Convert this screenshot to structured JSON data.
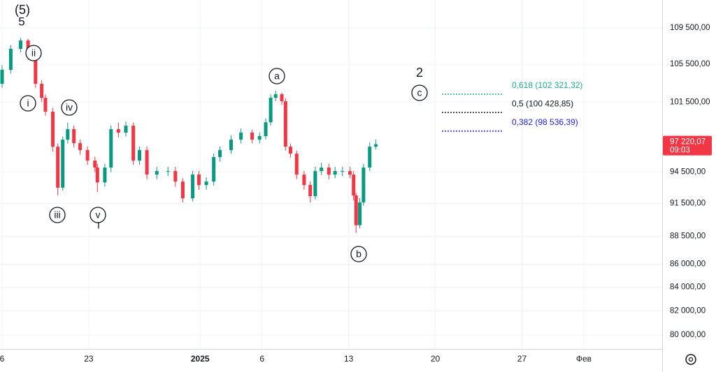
{
  "chart_data": {
    "type": "candlestick",
    "log_scale": true,
    "grid": true,
    "up_color": "#089981",
    "down_color": "#f23645",
    "xlim": [
      -0.17,
      53.33
    ],
    "ylim": [
      78860,
      112670
    ],
    "xticks": [
      {
        "value": 0,
        "label": "6"
      },
      {
        "value": 7,
        "label": "23"
      },
      {
        "value": 16,
        "label": "2025"
      },
      {
        "value": 21,
        "label": "6"
      },
      {
        "value": 28,
        "label": "13"
      },
      {
        "value": 35,
        "label": "20"
      },
      {
        "value": 42,
        "label": "27"
      },
      {
        "value": 47,
        "label": "Фев"
      }
    ],
    "yticks": [
      {
        "value": 109500,
        "label": "109 500,00"
      },
      {
        "value": 105500,
        "label": "105 500,00"
      },
      {
        "value": 101500,
        "label": "101 500,00"
      },
      {
        "value": 94500,
        "label": "94 500,00"
      },
      {
        "value": 91500,
        "label": "91 500,00"
      },
      {
        "value": 88500,
        "label": "88 500,00"
      },
      {
        "value": 86000,
        "label": "86 000,00"
      },
      {
        "value": 84000,
        "label": "84 000,00"
      },
      {
        "value": 82000,
        "label": "82 000,00"
      },
      {
        "value": 80000,
        "label": "80 000,00"
      }
    ],
    "x": [
      0,
      0.7,
      1.5,
      2.1,
      2.7,
      3.2,
      3.5,
      4.1,
      4.5,
      4.9,
      5.3,
      5.8,
      6.3,
      6.9,
      7.5,
      7.7,
      8.3,
      8.8,
      9.4,
      10.0,
      10.6,
      11.1,
      11.7,
      12.5,
      13.4,
      14.0,
      14.6,
      15.4,
      15.9,
      16.5,
      17.1,
      17.6,
      18.5,
      19.3,
      20.2,
      20.8,
      21.3,
      21.7,
      22.1,
      22.6,
      22.9,
      23.3,
      23.8,
      24.4,
      24.9,
      25.3,
      25.8,
      26.4,
      26.9,
      27.5,
      28.1,
      28.4,
      28.6,
      28.9,
      29.2,
      29.7,
      30.2
    ],
    "open": [
      103420,
      104910,
      107180,
      108100,
      106420,
      103420,
      101950,
      100510,
      96980,
      93000,
      97680,
      98730,
      97330,
      96640,
      95610,
      94930,
      93500,
      94930,
      98730,
      98380,
      99080,
      95610,
      96640,
      94250,
      94590,
      94590,
      93580,
      92000,
      94250,
      93250,
      93580,
      95950,
      96640,
      97680,
      98380,
      97680,
      98030,
      99430,
      101950,
      102320,
      101590,
      96980,
      96290,
      94250,
      93250,
      92200,
      94590,
      94930,
      94250,
      94590,
      94590,
      94250,
      92260,
      89500,
      91600,
      94930,
      96980
    ],
    "high": [
      105400,
      107600,
      108400,
      108300,
      106800,
      103800,
      102300,
      100900,
      97300,
      98000,
      99400,
      99100,
      97700,
      97000,
      96000,
      95300,
      95300,
      99100,
      99400,
      99500,
      99400,
      97000,
      97000,
      95000,
      95000,
      95000,
      93900,
      94600,
      94600,
      94000,
      96300,
      97000,
      98100,
      98800,
      98700,
      98400,
      99800,
      102300,
      102700,
      102500,
      101900,
      97300,
      96600,
      94600,
      93600,
      95000,
      95400,
      95300,
      95000,
      95000,
      95000,
      94600,
      92500,
      92000,
      95300,
      97400,
      97700
    ],
    "low": [
      103000,
      104500,
      106800,
      106000,
      103000,
      101500,
      100100,
      96500,
      92260,
      92700,
      97300,
      96900,
      96200,
      95200,
      94500,
      92590,
      93100,
      94500,
      97900,
      98000,
      95200,
      95200,
      93800,
      93800,
      94100,
      93100,
      91600,
      91700,
      92800,
      92800,
      93200,
      95500,
      96300,
      97300,
      97300,
      97300,
      97700,
      99100,
      101600,
      101200,
      96600,
      95900,
      93800,
      92800,
      91600,
      91900,
      94200,
      93800,
      93900,
      94100,
      93900,
      91800,
      88800,
      89200,
      91300,
      94600,
      96700
    ],
    "close": [
      104910,
      107180,
      108100,
      106420,
      103420,
      101950,
      100510,
      96980,
      93000,
      97680,
      98730,
      97330,
      96640,
      95610,
      94930,
      93500,
      94930,
      98730,
      98380,
      99080,
      95610,
      96640,
      94250,
      94590,
      94590,
      93580,
      92000,
      94250,
      93250,
      93580,
      95950,
      96640,
      97680,
      98380,
      97680,
      98030,
      99430,
      101950,
      102320,
      101590,
      96980,
      96290,
      94250,
      93250,
      92200,
      94590,
      94930,
      94250,
      94590,
      94590,
      94250,
      92260,
      89500,
      91600,
      94930,
      96980,
      97220
    ],
    "last_price": {
      "value": 97220.07,
      "label": "97 220,07",
      "color": "#f23645"
    },
    "countdown": "09:03",
    "fib_levels": [
      {
        "value": 102321.32,
        "label": "0,618 (102 321,32)",
        "color": "#22ab94"
      },
      {
        "value": 100428.85,
        "label": "0,5 (100 428,85)",
        "color": "#131722"
      },
      {
        "value": 98536.39,
        "label": "0,382 (98 536,39)",
        "color": "#1e22e6"
      }
    ],
    "wave_labels": [
      "(5)",
      "5",
      "ii",
      "i",
      "iv",
      "iii",
      "v",
      "I",
      "a",
      "b",
      "c",
      "2"
    ]
  }
}
